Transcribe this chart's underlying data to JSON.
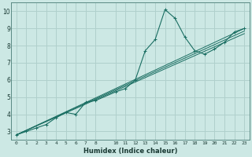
{
  "xlabel": "Humidex (Indice chaleur)",
  "background_color": "#cce8e4",
  "grid_color": "#b0d0cc",
  "line_color": "#1a6e62",
  "plot_bg": "#cce8e4",
  "xlim": [
    -0.5,
    23.5
  ],
  "ylim": [
    2.5,
    10.5
  ],
  "xtick_labels": [
    "0",
    "1",
    "2",
    "3",
    "4",
    "5",
    "6",
    "7",
    "8",
    "10",
    "11",
    "12",
    "13",
    "14",
    "15",
    "16",
    "17",
    "18",
    "19",
    "20",
    "21",
    "22",
    "23"
  ],
  "xtick_positions": [
    0,
    1,
    2,
    3,
    4,
    5,
    6,
    7,
    8,
    10,
    11,
    12,
    13,
    14,
    15,
    16,
    17,
    18,
    19,
    20,
    21,
    22,
    23
  ],
  "yticks": [
    3,
    4,
    5,
    6,
    7,
    8,
    9,
    10
  ],
  "series": [
    {
      "x": [
        0,
        1,
        2,
        3,
        4,
        5,
        6,
        7,
        8,
        10,
        11,
        12,
        13,
        14,
        15,
        16,
        17,
        18,
        19,
        20,
        21,
        22,
        23
      ],
      "y": [
        2.8,
        3.0,
        3.2,
        3.4,
        3.8,
        4.1,
        4.0,
        4.7,
        4.8,
        5.3,
        5.5,
        6.0,
        7.7,
        8.35,
        10.1,
        9.6,
        8.5,
        7.7,
        7.5,
        7.8,
        8.2,
        8.8,
        9.0
      ],
      "marker": true
    },
    {
      "x": [
        0,
        23
      ],
      "y": [
        2.8,
        9.0
      ],
      "marker": false
    },
    {
      "x": [
        0,
        23
      ],
      "y": [
        2.8,
        8.85
      ],
      "marker": false
    },
    {
      "x": [
        0,
        23
      ],
      "y": [
        2.8,
        8.7
      ],
      "marker": false
    }
  ]
}
